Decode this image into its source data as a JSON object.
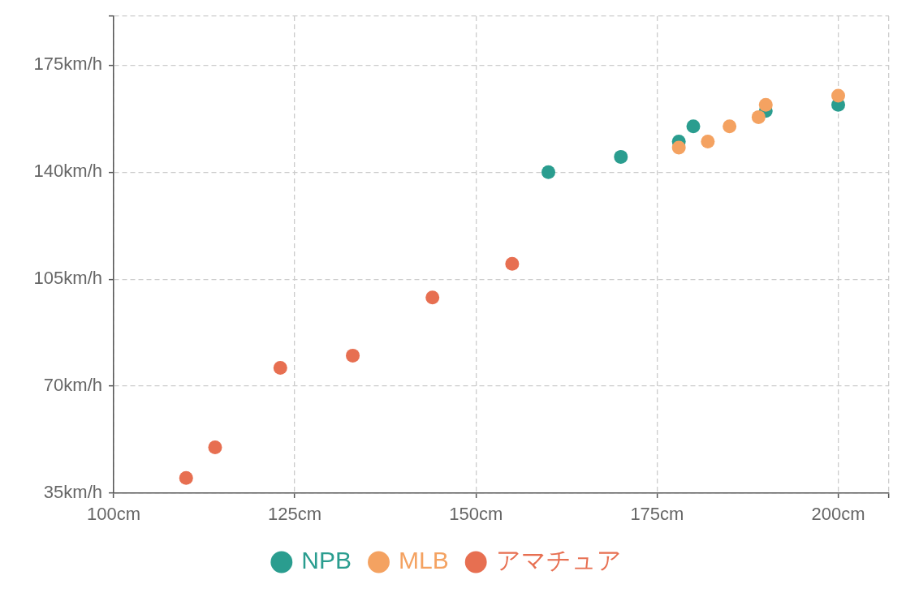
{
  "chart_data": {
    "type": "scatter",
    "xlim": [
      100,
      207
    ],
    "ylim": [
      35,
      191
    ],
    "xticks": [
      {
        "value": 100,
        "label": "100cm"
      },
      {
        "value": 125,
        "label": "125cm"
      },
      {
        "value": 150,
        "label": "150cm"
      },
      {
        "value": 175,
        "label": "175cm"
      },
      {
        "value": 200,
        "label": "200cm"
      },
      {
        "value": 207,
        "label": null
      }
    ],
    "yticks": [
      {
        "value": 35,
        "label": "35km/h"
      },
      {
        "value": 70,
        "label": "70km/h"
      },
      {
        "value": 105,
        "label": "105km/h"
      },
      {
        "value": 140,
        "label": "140km/h"
      },
      {
        "value": 175,
        "label": "175km/h"
      },
      {
        "value": 191,
        "label": null
      }
    ],
    "grid": true,
    "legend": "bottom",
    "marker": "circle",
    "series": [
      {
        "name": "NPB",
        "color": "#2a9d8f",
        "x": [
          160,
          170,
          178,
          180,
          190,
          200
        ],
        "values": [
          140,
          145,
          150,
          155,
          160,
          162
        ]
      },
      {
        "name": "MLB",
        "color": "#f4a261",
        "x": [
          178,
          182,
          185,
          189,
          190,
          200
        ],
        "values": [
          148,
          150,
          155,
          158,
          162,
          165
        ]
      },
      {
        "name": "アマチュア",
        "color": "#e76f51",
        "x": [
          110,
          114,
          123,
          133,
          144,
          155
        ],
        "values": [
          40,
          50,
          76,
          80,
          99,
          110
        ]
      }
    ]
  }
}
